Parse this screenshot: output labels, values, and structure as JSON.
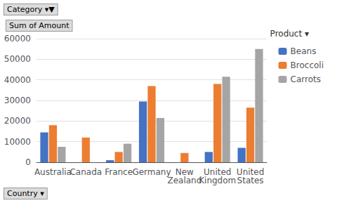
{
  "chart_data": {
    "type": "bar",
    "categories": [
      "Australia",
      "Canada",
      "France",
      "Germany",
      "New\nZealand",
      "United\nKingdom",
      "United\nStates"
    ],
    "series": [
      {
        "name": "Beans",
        "color": "#4472C4",
        "values": [
          14500,
          0,
          1000,
          29500,
          0,
          5000,
          7000
        ]
      },
      {
        "name": "Broccoli",
        "color": "#ED7D31",
        "values": [
          18000,
          12000,
          5000,
          37000,
          4500,
          38000,
          26500
        ]
      },
      {
        "name": "Carrots",
        "color": "#A5A5A5",
        "values": [
          7500,
          0,
          9000,
          21500,
          0,
          41500,
          55000
        ]
      }
    ],
    "ylim": [
      0,
      60000
    ],
    "yticks": [
      0,
      10000,
      20000,
      30000,
      40000,
      50000,
      60000
    ],
    "grid": true,
    "legend": "right",
    "legend_title": "Product ▾",
    "ylabel": "Sum of Amount",
    "xlabel": "Country ▾",
    "annotations": [
      "Category ▾▼"
    ]
  }
}
